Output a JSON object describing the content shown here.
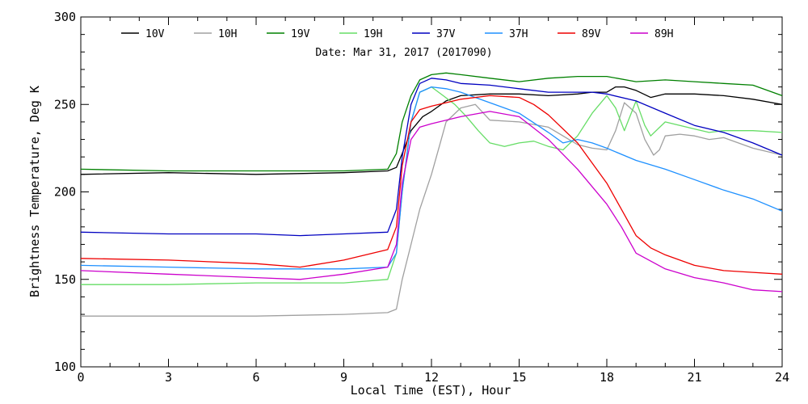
{
  "chart_data": {
    "type": "line",
    "title": "",
    "annotation": "Date: Mar 31, 2017 (2017090)",
    "xlabel": "Local Time (EST), Hour",
    "ylabel": "Brightness Temperature, Deg K",
    "xlim": [
      0,
      24
    ],
    "ylim": [
      100,
      300
    ],
    "xticks": [
      0,
      3,
      6,
      9,
      12,
      15,
      18,
      21,
      24
    ],
    "yticks": [
      100,
      150,
      200,
      250,
      300
    ],
    "grid": false,
    "legend_position": "top",
    "series": [
      {
        "name": "10V",
        "color": "#000000",
        "x": [
          0,
          3,
          6,
          9,
          10.5,
          10.8,
          11.0,
          11.3,
          11.7,
          12.0,
          12.5,
          13,
          14,
          15,
          16,
          17,
          17.5,
          18,
          18.3,
          18.6,
          19,
          19.5,
          20,
          21,
          22,
          23,
          24
        ],
        "y": [
          210,
          211,
          210,
          211,
          212,
          214,
          222,
          235,
          243,
          246,
          252,
          255,
          256,
          256,
          255,
          256,
          257,
          257,
          260,
          260,
          258,
          254,
          256,
          256,
          255,
          253,
          250
        ]
      },
      {
        "name": "10H",
        "color": "#a0a0a0",
        "x": [
          0,
          3,
          6,
          9,
          10.5,
          10.8,
          11.0,
          11.3,
          11.6,
          12.0,
          12.3,
          12.5,
          13,
          13.5,
          14,
          15,
          16,
          16.5,
          17,
          17.5,
          18,
          18.3,
          18.6,
          19,
          19.3,
          19.6,
          19.8,
          20,
          20.5,
          21,
          21.5,
          22,
          23,
          24
        ],
        "y": [
          129,
          129,
          129,
          130,
          131,
          133,
          150,
          170,
          190,
          210,
          228,
          240,
          248,
          250,
          241,
          240,
          237,
          232,
          227,
          225,
          224,
          235,
          251,
          245,
          230,
          221,
          224,
          232,
          233,
          232,
          230,
          231,
          225,
          221
        ]
      },
      {
        "name": "19V",
        "color": "#008000",
        "x": [
          0,
          3,
          6,
          9,
          10.5,
          10.8,
          11.0,
          11.3,
          11.6,
          12.0,
          12.5,
          13,
          14,
          15,
          16,
          17,
          18,
          19,
          20,
          21,
          22,
          23,
          24
        ],
        "y": [
          213,
          212,
          212,
          212,
          213,
          222,
          240,
          255,
          264,
          267,
          268,
          267,
          265,
          263,
          265,
          266,
          266,
          263,
          264,
          263,
          262,
          261,
          255
        ]
      },
      {
        "name": "19H",
        "color": "#66dd66",
        "x": [
          0,
          3,
          6,
          9,
          10.5,
          10.8,
          11.0,
          11.3,
          11.6,
          12.0,
          12.4,
          12.8,
          13.2,
          13.6,
          14,
          14.5,
          15,
          15.5,
          16,
          16.5,
          17,
          17.5,
          18,
          18.3,
          18.6,
          19,
          19.3,
          19.5,
          20,
          20.5,
          21,
          21.5,
          22,
          23,
          24
        ],
        "y": [
          147,
          147,
          148,
          148,
          150,
          165,
          200,
          240,
          257,
          260,
          255,
          250,
          243,
          235,
          228,
          226,
          228,
          229,
          226,
          224,
          232,
          245,
          255,
          248,
          235,
          252,
          238,
          232,
          240,
          238,
          236,
          234,
          235,
          235,
          234
        ]
      },
      {
        "name": "37V",
        "color": "#0000c0",
        "x": [
          0,
          3,
          6,
          7.5,
          9,
          10.5,
          10.8,
          11.0,
          11.3,
          11.6,
          12.0,
          12.5,
          13,
          14,
          15,
          16,
          17,
          17.5,
          18,
          19,
          20,
          21,
          22,
          23,
          24
        ],
        "y": [
          177,
          176,
          176,
          175,
          176,
          177,
          190,
          220,
          250,
          262,
          265,
          264,
          262,
          261,
          259,
          257,
          257,
          257,
          256,
          252,
          245,
          238,
          234,
          228,
          221
        ]
      },
      {
        "name": "37H",
        "color": "#1e90ff",
        "x": [
          0,
          3,
          6,
          9,
          10.5,
          10.8,
          11.0,
          11.3,
          11.6,
          12.0,
          12.5,
          13,
          14,
          15,
          16,
          16.5,
          17,
          17.5,
          18,
          19,
          20,
          21,
          22,
          23,
          24
        ],
        "y": [
          158,
          157,
          156,
          156,
          157,
          165,
          200,
          240,
          257,
          260,
          259,
          257,
          251,
          245,
          234,
          228,
          230,
          228,
          225,
          218,
          213,
          207,
          201,
          196,
          189
        ]
      },
      {
        "name": "89V",
        "color": "#ee0000",
        "x": [
          0,
          3,
          6,
          7.5,
          9,
          10.5,
          10.8,
          11.0,
          11.3,
          11.6,
          12.0,
          12.5,
          13,
          14,
          15,
          15.5,
          16,
          17,
          18,
          18.5,
          19,
          19.5,
          20,
          21,
          22,
          23,
          24
        ],
        "y": [
          162,
          161,
          159,
          157,
          161,
          167,
          180,
          215,
          240,
          247,
          249,
          251,
          253,
          255,
          254,
          250,
          244,
          228,
          205,
          190,
          175,
          168,
          164,
          158,
          155,
          154,
          153
        ]
      },
      {
        "name": "89H",
        "color": "#cc00cc",
        "x": [
          0,
          3,
          6,
          7.5,
          9,
          10.5,
          10.8,
          11.0,
          11.3,
          11.6,
          12.0,
          12.5,
          13,
          14,
          15,
          16,
          17,
          18,
          18.5,
          19,
          20,
          21,
          22,
          23,
          24
        ],
        "y": [
          155,
          153,
          151,
          150,
          153,
          157,
          170,
          205,
          230,
          237,
          239,
          241,
          243,
          246,
          243,
          230,
          213,
          193,
          180,
          165,
          156,
          151,
          148,
          144,
          143
        ]
      }
    ]
  }
}
